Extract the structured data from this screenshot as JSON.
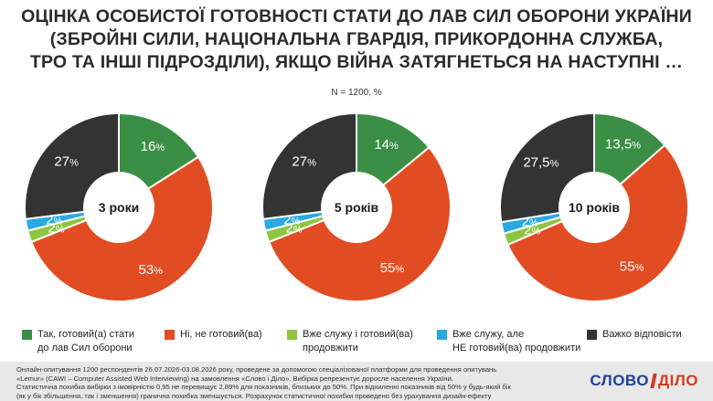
{
  "title_lines": [
    "ОЦІНКА ОСОБИСТОЇ ГОТОВНОСТІ СТАТИ ДО ЛАВ СИЛ ОБОРОНИ УКРАЇНИ",
    "(ЗБРОЙНІ СИЛИ, НАЦІОНАЛЬНА ГВАРДІЯ, ПРИКОРДОННА СЛУЖБА,",
    "ТРО ТА ІНШІ ПІДРОЗДІЛИ), ЯКЩО ВІЙНА ЗАТЯГНЕТЬСЯ НА НАСТУПНІ …"
  ],
  "subtitle": "N = 1200, %",
  "colors": {
    "yes": "#3a8f45",
    "no": "#e24c22",
    "serve_ready": "#8cc63f",
    "serve_not_ready": "#29a9e0",
    "hard": "#333333"
  },
  "legend": [
    {
      "key": "yes",
      "line1": "Так, готовий(а) стати",
      "line2": "до лав Сил оборони"
    },
    {
      "key": "no",
      "line1": "Ні, не готовий(ва)",
      "line2": ""
    },
    {
      "key": "serve_ready",
      "line1": "Вже служу і готовий(ва)",
      "line2": "продовжити"
    },
    {
      "key": "serve_not_ready",
      "line1": "Вже служу, але",
      "line2": "НЕ готовий(ва) продовжити"
    },
    {
      "key": "hard",
      "line1": "Важко відповісти",
      "line2": ""
    }
  ],
  "chart_data": [
    {
      "type": "pie",
      "center_label": "3 роки",
      "slices": [
        {
          "key": "yes",
          "value": 16,
          "label": "16"
        },
        {
          "key": "no",
          "value": 53,
          "label": "53"
        },
        {
          "key": "serve_ready",
          "value": 2,
          "label": "2"
        },
        {
          "key": "serve_not_ready",
          "value": 2,
          "label": "2"
        },
        {
          "key": "hard",
          "value": 27,
          "label": "27"
        }
      ]
    },
    {
      "type": "pie",
      "center_label": "5 років",
      "slices": [
        {
          "key": "yes",
          "value": 14,
          "label": "14"
        },
        {
          "key": "no",
          "value": 55,
          "label": "55"
        },
        {
          "key": "serve_ready",
          "value": 2,
          "label": "2"
        },
        {
          "key": "serve_not_ready",
          "value": 2,
          "label": "2"
        },
        {
          "key": "hard",
          "value": 27,
          "label": "27"
        }
      ]
    },
    {
      "type": "pie",
      "center_label": "10 років",
      "slices": [
        {
          "key": "yes",
          "value": 13.5,
          "label": "13,5"
        },
        {
          "key": "no",
          "value": 55,
          "label": "55"
        },
        {
          "key": "serve_ready",
          "value": 2,
          "label": "2"
        },
        {
          "key": "serve_not_ready",
          "value": 2,
          "label": "2"
        },
        {
          "key": "hard",
          "value": 27.5,
          "label": "27,5"
        }
      ]
    }
  ],
  "percent_sign": "%",
  "footer_notes": [
    "Онлайн-опитування 1200 респондентів 26.07.2026-03.08.2026 року, проведене за допомогою спеціалізованої платформи для проведення опитувань",
    "«Lemur» (CAWI – Computer Assisted Web Interviewing) на замовлення «Слово і Діло». Вибірка репрезентує доросле населення України.",
    "Статистична похибка вибірки з імовірністю 0,95 не перевищує 2,89% для показників, близьких до 50%. При відхиленні показників від 50% у будь-який бік",
    "(як у бік збільшення, так і зменшення) гранична похибка зменшується. Розрахунок статистичної похибки проведено без урахування дизайн-ефекту"
  ],
  "logo": {
    "word1": "СЛОВО",
    "word2": "ДІЛО"
  }
}
